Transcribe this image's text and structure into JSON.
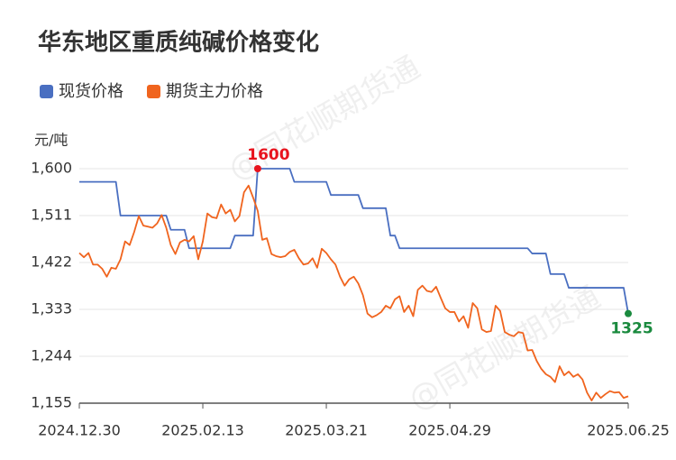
{
  "chart_data": {
    "type": "line",
    "title": "华东地区重质纯碱价格变化",
    "y_unit": "元/吨",
    "watermark": "@同花顺期货通",
    "categories": [
      "2024.12.30",
      null,
      null,
      null,
      null,
      null,
      null,
      null,
      null,
      null,
      null,
      null,
      null,
      null,
      null,
      null,
      null,
      null,
      null,
      null,
      null,
      null,
      null,
      null,
      null,
      null,
      null,
      "2025.02.13",
      null,
      null,
      null,
      null,
      null,
      null,
      null,
      null,
      null,
      null,
      null,
      null,
      null,
      null,
      null,
      null,
      null,
      null,
      null,
      null,
      null,
      null,
      null,
      null,
      null,
      null,
      "2025.03.21",
      null,
      null,
      null,
      null,
      null,
      null,
      null,
      null,
      null,
      null,
      null,
      null,
      null,
      null,
      null,
      null,
      null,
      null,
      null,
      null,
      null,
      null,
      null,
      null,
      null,
      null,
      "2025.04.29",
      null,
      null,
      null,
      null,
      null,
      null,
      null,
      null,
      null,
      null,
      null,
      null,
      null,
      null,
      null,
      null,
      null,
      null,
      null,
      null,
      null,
      null,
      null,
      null,
      null,
      null,
      null,
      null,
      null,
      null,
      null,
      null,
      null,
      null,
      null,
      null,
      null,
      null,
      "2025.06.25"
    ],
    "series": [
      {
        "name": "现货价格",
        "color": "#4a6fc1",
        "values": [
          1575,
          1575,
          1575,
          1575,
          1575,
          1575,
          1575,
          1575,
          1575,
          1511,
          1511,
          1511,
          1511,
          1511,
          1511,
          1511,
          1511,
          1511,
          1511,
          1511,
          1484,
          1484,
          1484,
          1484,
          1449,
          1449,
          1449,
          1449,
          1449,
          1449,
          1449,
          1449,
          1449,
          1449,
          1473,
          1473,
          1473,
          1473,
          1473,
          1600,
          1600,
          1600,
          1600,
          1600,
          1600,
          1600,
          1600,
          1575,
          1575,
          1575,
          1575,
          1575,
          1575,
          1575,
          1575,
          1550,
          1550,
          1550,
          1550,
          1550,
          1550,
          1550,
          1525,
          1525,
          1525,
          1525,
          1525,
          1525,
          1473,
          1473,
          1449,
          1449,
          1449,
          1449,
          1449,
          1449,
          1449,
          1449,
          1449,
          1449,
          1449,
          1449,
          1449,
          1449,
          1449,
          1449,
          1449,
          1449,
          1449,
          1449,
          1449,
          1449,
          1449,
          1449,
          1449,
          1449,
          1449,
          1449,
          1449,
          1439,
          1439,
          1439,
          1439,
          1400,
          1400,
          1400,
          1400,
          1374,
          1374,
          1374,
          1374,
          1374,
          1374,
          1374,
          1374,
          1374,
          1374,
          1374,
          1374,
          1374,
          1325
        ]
      },
      {
        "name": "期货主力价格",
        "color": "#f0641e",
        "values": [
          1440,
          1432,
          1440,
          1418,
          1418,
          1410,
          1395,
          1412,
          1410,
          1428,
          1462,
          1455,
          1480,
          1510,
          1492,
          1490,
          1488,
          1496,
          1512,
          1488,
          1455,
          1438,
          1460,
          1465,
          1462,
          1472,
          1428,
          1462,
          1515,
          1508,
          1506,
          1532,
          1515,
          1522,
          1500,
          1510,
          1555,
          1568,
          1545,
          1520,
          1465,
          1468,
          1438,
          1434,
          1432,
          1434,
          1442,
          1446,
          1430,
          1418,
          1420,
          1430,
          1412,
          1448,
          1440,
          1428,
          1418,
          1395,
          1378,
          1390,
          1395,
          1382,
          1360,
          1325,
          1318,
          1322,
          1328,
          1340,
          1335,
          1352,
          1358,
          1328,
          1340,
          1320,
          1370,
          1378,
          1368,
          1366,
          1376,
          1355,
          1335,
          1328,
          1328,
          1310,
          1320,
          1298,
          1345,
          1335,
          1295,
          1290,
          1292,
          1340,
          1330,
          1290,
          1285,
          1282,
          1290,
          1288,
          1255,
          1256,
          1235,
          1220,
          1210,
          1205,
          1195,
          1225,
          1208,
          1215,
          1205,
          1210,
          1200,
          1175,
          1160,
          1175,
          1165,
          1172,
          1178,
          1175,
          1176,
          1165,
          1168
        ]
      }
    ],
    "ylim": [
      1155,
      1600
    ],
    "yticks": [
      {
        "value": 1155,
        "label": "1,155"
      },
      {
        "value": 1244,
        "label": "1,244"
      },
      {
        "value": 1333,
        "label": "1,333"
      },
      {
        "value": 1422,
        "label": "1,422"
      },
      {
        "value": 1511,
        "label": "1,511"
      },
      {
        "value": 1600,
        "label": "1,600"
      }
    ],
    "grid": true
  }
}
